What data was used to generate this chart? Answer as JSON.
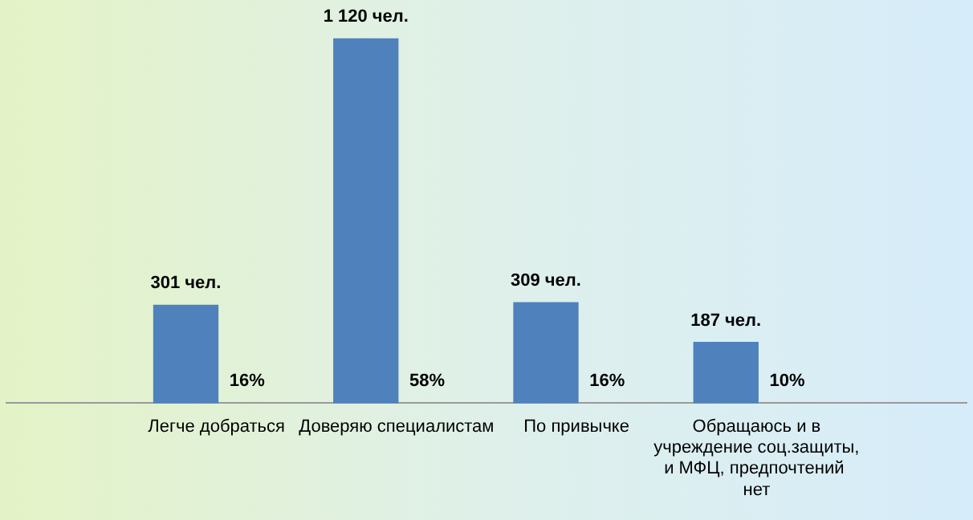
{
  "chart_data": {
    "type": "bar",
    "categories": [
      "Легче добраться",
      "Доверяю специалистам",
      "По привычке",
      "Обращаюсь и в учреждение соц.защиты, и МФЦ, предпочтений  нет"
    ],
    "values": [
      301,
      1120,
      309,
      187
    ],
    "color": "#4f81bd",
    "value_labels": [
      "301 чел.",
      "1 120 чел.",
      "309 чел.",
      "187 чел."
    ],
    "annotations": [
      {
        "text": "16%",
        "x": "Легче добраться"
      },
      {
        "text": "58%",
        "x": "Доверяю специалистам"
      },
      {
        "text": "16%",
        "x": "По привычке"
      },
      {
        "text": "10%",
        "x": "Обращаюсь и в учреждение соц.защиты, и МФЦ, предпочтений  нет"
      }
    ],
    "grid": false,
    "legend": false
  }
}
